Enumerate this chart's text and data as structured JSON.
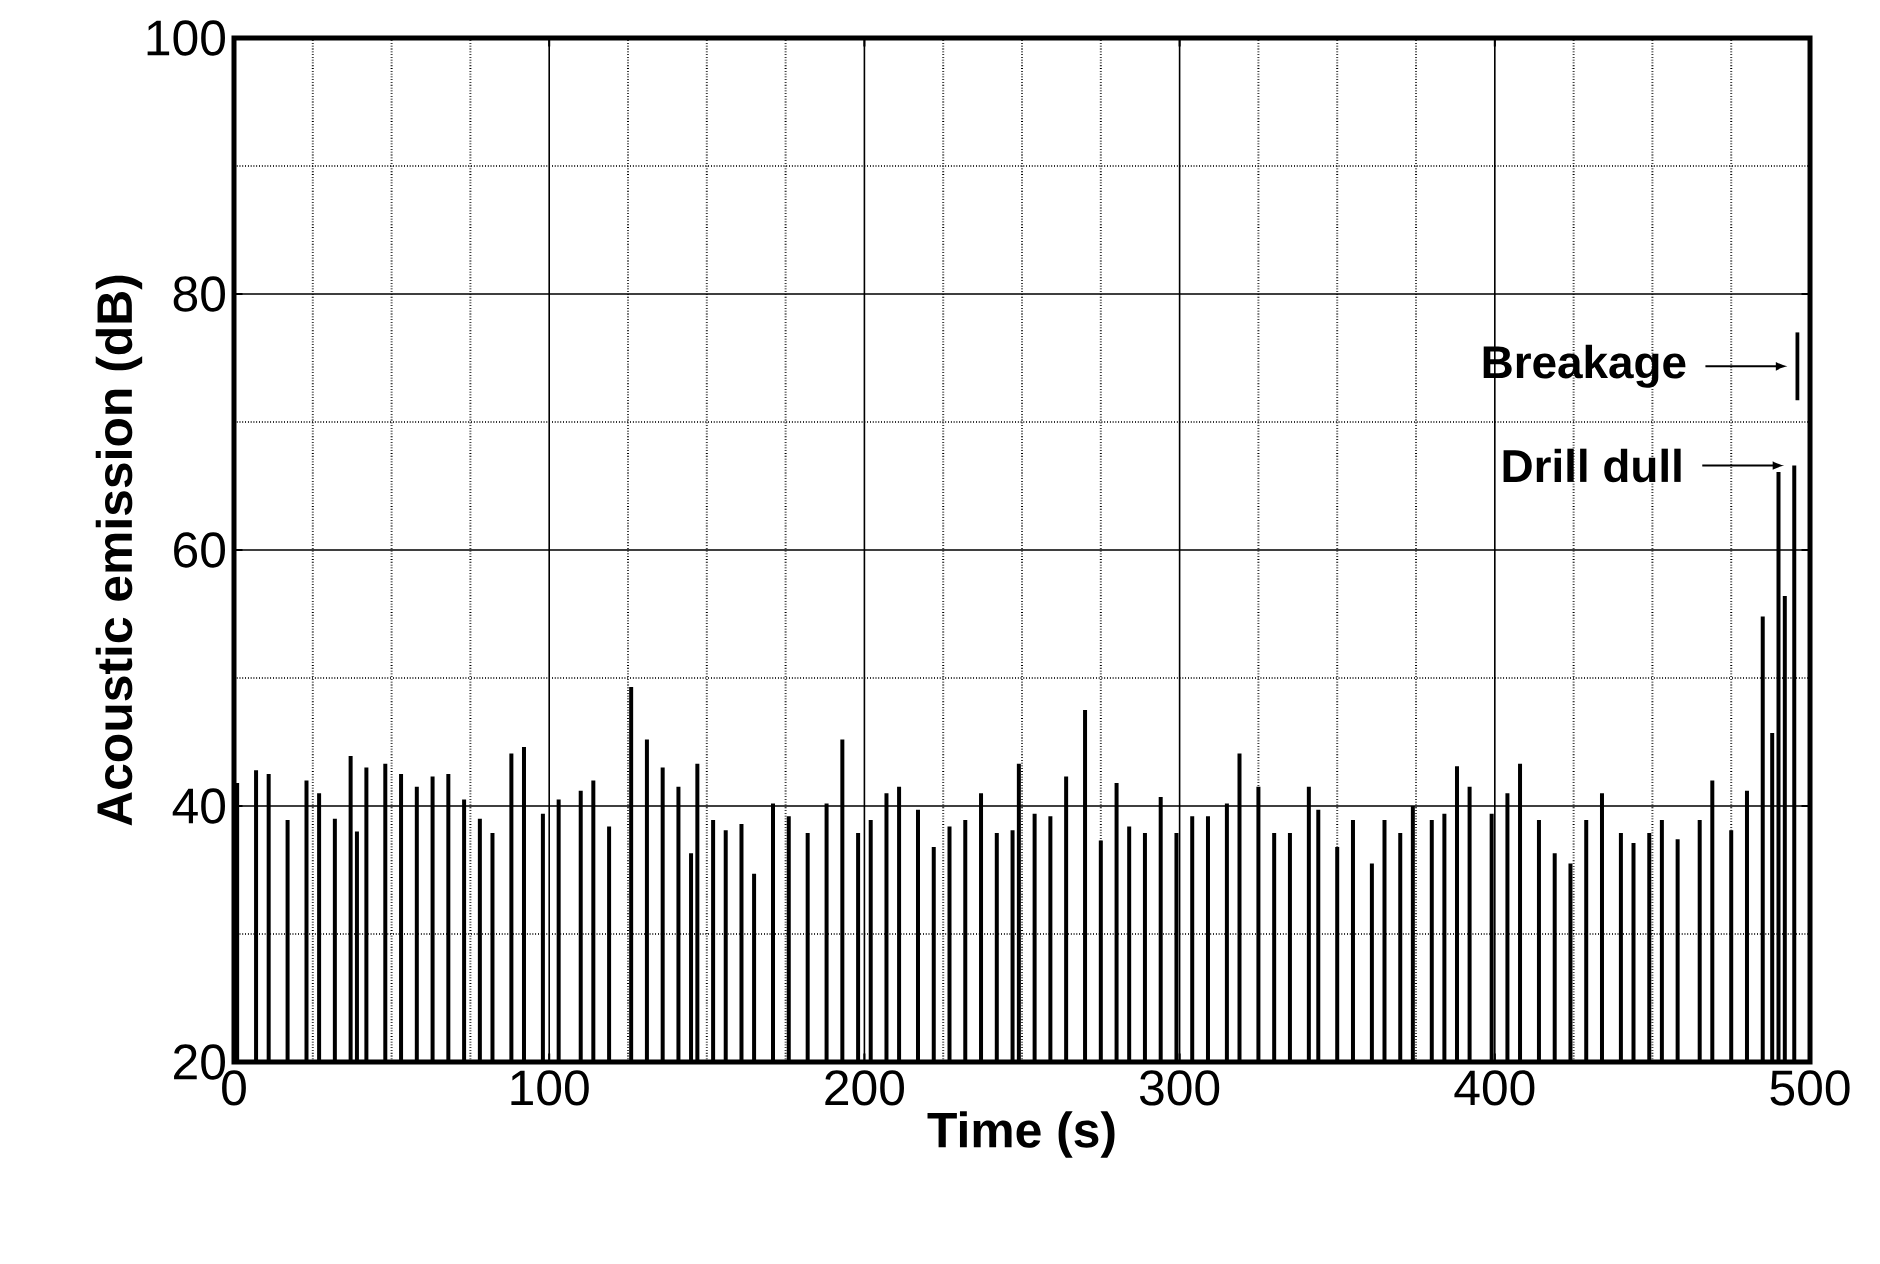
{
  "chart_data": {
    "type": "bar",
    "xlabel": "Time (s)",
    "ylabel": "Acoustic emission (dB)",
    "xlim": [
      0,
      500
    ],
    "ylim": [
      20,
      100
    ],
    "xticks": [
      0,
      100,
      200,
      300,
      400,
      500
    ],
    "yticks": [
      20,
      40,
      60,
      80,
      100
    ],
    "grid": true,
    "series": [
      {
        "color": "#000000",
        "x": [
          1,
          7,
          11,
          17,
          23,
          27,
          32,
          37,
          39,
          42,
          48,
          53,
          58,
          63,
          68,
          73,
          78,
          82,
          88,
          92,
          98,
          103,
          110,
          114,
          119,
          126,
          131,
          136,
          141,
          145,
          147,
          152,
          156,
          161,
          165,
          171,
          176,
          182,
          188,
          193,
          198,
          202,
          207,
          211,
          217,
          222,
          227,
          232,
          237,
          242,
          247,
          249,
          254,
          259,
          264,
          270,
          275,
          280,
          284,
          289,
          294,
          299,
          304,
          309,
          315,
          319,
          325,
          330,
          335,
          341,
          344,
          350,
          355,
          361,
          365,
          370,
          374,
          380,
          384,
          388,
          392,
          399,
          404,
          408,
          414,
          419,
          424,
          429,
          434,
          440,
          444,
          449,
          453,
          458,
          465,
          469,
          475,
          480,
          485,
          488,
          490,
          492,
          495
        ],
        "values": [
          41.8,
          42.8,
          42.5,
          38.9,
          42,
          41,
          39,
          43.9,
          38,
          43,
          43.3,
          42.5,
          41.5,
          42.3,
          42.5,
          40.5,
          39,
          37.9,
          44.1,
          44.6,
          39.4,
          40.5,
          41.2,
          42,
          38.4,
          49.3,
          45.2,
          43,
          41.5,
          36.3,
          43.3,
          38.9,
          38.1,
          38.6,
          34.7,
          40.2,
          39.2,
          37.9,
          40.2,
          45.2,
          37.9,
          38.9,
          41,
          41.5,
          39.7,
          36.8,
          38.4,
          38.9,
          41,
          37.9,
          38.1,
          43.3,
          39.4,
          39.2,
          42.3,
          47.5,
          37.3,
          41.8,
          38.4,
          37.9,
          40.7,
          37.9,
          39.2,
          39.2,
          40.2,
          44.1,
          41.5,
          37.9,
          37.9,
          41.5,
          39.7,
          36.8,
          38.9,
          35.5,
          38.9,
          37.9,
          40,
          38.9,
          39.4,
          43.1,
          41.5,
          39.4,
          41,
          43.3,
          38.9,
          36.3,
          35.5,
          38.9,
          41,
          37.9,
          37.1,
          37.9,
          38.9,
          37.4,
          38.9,
          42,
          38.1,
          41.2,
          54.8,
          45.7,
          66.1,
          56.4,
          66.6
        ]
      },
      {
        "color": "#000000",
        "x": [
          496
        ],
        "base": [
          71.7
        ],
        "values": [
          5.3
        ]
      }
    ],
    "annotations": [
      "Breakage",
      "Drill dull"
    ]
  }
}
